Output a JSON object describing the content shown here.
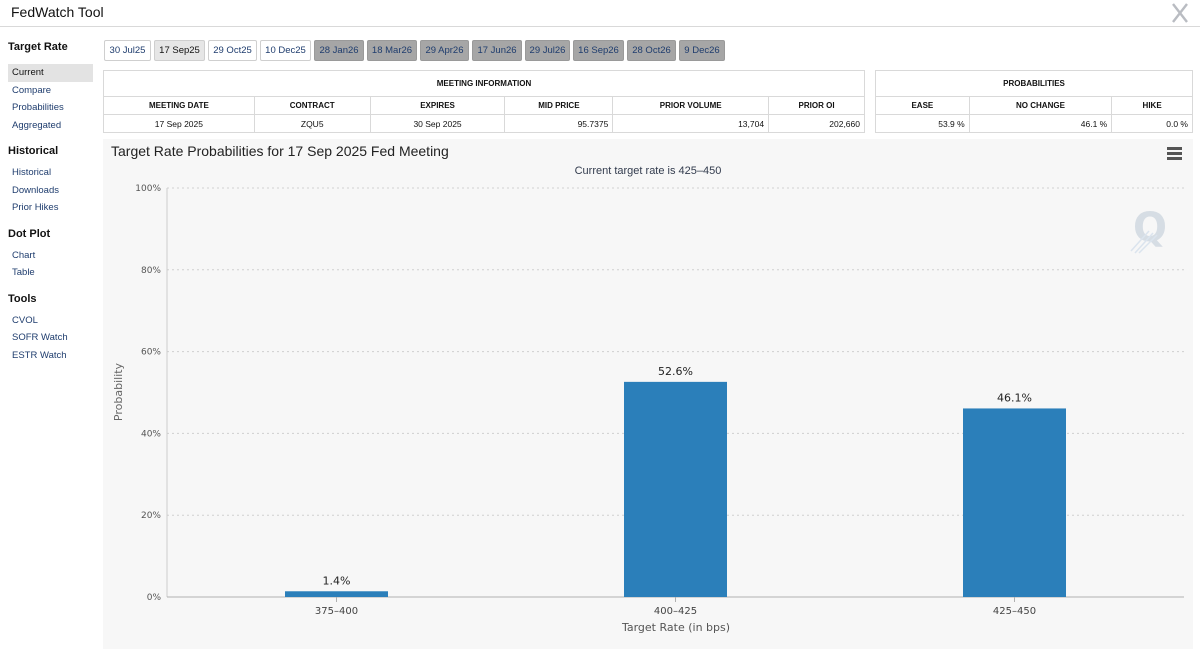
{
  "app": {
    "title": "FedWatch Tool"
  },
  "sidebar": {
    "sections": [
      {
        "title": "Target Rate",
        "items": [
          "Current",
          "Compare",
          "Probabilities",
          "Aggregated"
        ]
      },
      {
        "title": "Historical",
        "items": [
          "Historical",
          "Downloads",
          "Prior Hikes"
        ]
      },
      {
        "title": "Dot Plot",
        "items": [
          "Chart",
          "Table"
        ]
      },
      {
        "title": "Tools",
        "items": [
          "CVOL",
          "SOFR Watch",
          "ESTR Watch"
        ]
      }
    ],
    "active_item": "Current"
  },
  "tabs": [
    {
      "label": "30 Jul25",
      "state": "normal"
    },
    {
      "label": "17 Sep25",
      "state": "selected"
    },
    {
      "label": "29 Oct25",
      "state": "normal"
    },
    {
      "label": "10 Dec25",
      "state": "normal"
    },
    {
      "label": "28 Jan26",
      "state": "future"
    },
    {
      "label": "18 Mar26",
      "state": "future"
    },
    {
      "label": "29 Apr26",
      "state": "future"
    },
    {
      "label": "17 Jun26",
      "state": "future"
    },
    {
      "label": "29 Jul26",
      "state": "future"
    },
    {
      "label": "16 Sep26",
      "state": "future"
    },
    {
      "label": "28 Oct26",
      "state": "future"
    },
    {
      "label": "9 Dec26",
      "state": "future"
    }
  ],
  "meeting_info": {
    "heading": "MEETING INFORMATION",
    "headers": [
      "MEETING DATE",
      "CONTRACT",
      "EXPIRES",
      "MID PRICE",
      "PRIOR VOLUME",
      "PRIOR OI"
    ],
    "values": [
      "17 Sep 2025",
      "ZQU5",
      "30 Sep 2025",
      "95.7375",
      "13,704",
      "202,660"
    ]
  },
  "probabilities": {
    "heading": "PROBABILITIES",
    "headers": [
      "EASE",
      "NO CHANGE",
      "HIKE"
    ],
    "values": [
      "53.9 %",
      "46.1 %",
      "0.0 %"
    ]
  },
  "chart_header": {
    "title": "Target Rate Probabilities for 17 Sep 2025 Fed Meeting",
    "subtitle": "Current target rate is 425–450"
  },
  "chart_data": {
    "type": "bar",
    "title": "Target Rate Probabilities for 17 Sep 2025 Fed Meeting",
    "subtitle": "Current target rate is 425–450",
    "categories": [
      "375–400",
      "400–425",
      "425–450"
    ],
    "values": [
      1.4,
      52.6,
      46.1
    ],
    "value_labels": [
      "1.4%",
      "52.6%",
      "46.1%"
    ],
    "xlabel": "Target Rate (in bps)",
    "ylabel": "Probability",
    "ylim": [
      0,
      100
    ],
    "yticks": [
      "0%",
      "20%",
      "40%",
      "60%",
      "80%",
      "100%"
    ],
    "grid": true,
    "color": "#2b7fba"
  },
  "colors": {
    "bar": "#2b7fba",
    "link": "#1f3d6e"
  }
}
